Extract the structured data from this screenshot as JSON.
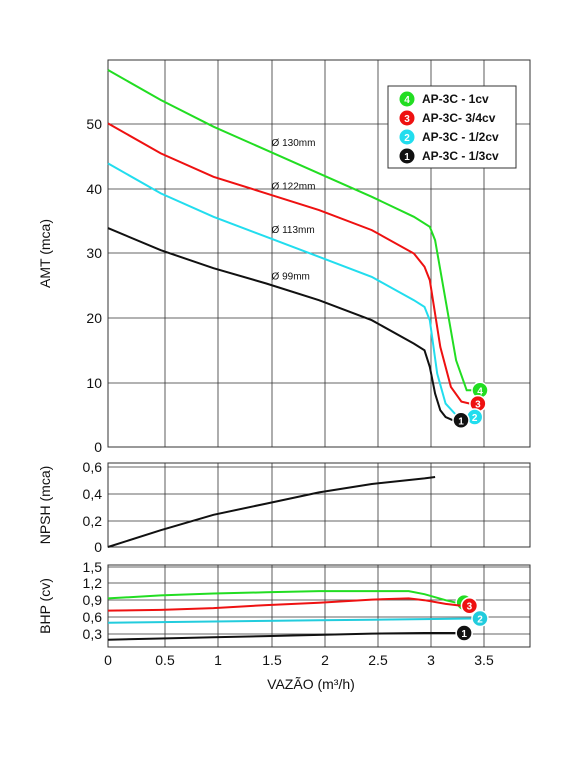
{
  "chart_data": [
    {
      "type": "line",
      "id": "amt",
      "ylabel": "AMT (mca)",
      "xlim": [
        0,
        4
      ],
      "ylim": [
        0,
        58
      ],
      "yticks": [
        "0",
        "10",
        "20",
        "30",
        "40",
        "50"
      ],
      "grid": true,
      "legend_position": "top-right",
      "series": [
        {
          "name": "AP-3C - 1cv",
          "badge": "4",
          "color": "#22dd22",
          "diameter_label": "Ø 130mm",
          "points": [
            [
              0,
              56.5
            ],
            [
              0.5,
              52
            ],
            [
              1,
              48
            ],
            [
              1.5,
              44.5
            ],
            [
              2,
              41
            ],
            [
              2.5,
              37.5
            ],
            [
              2.9,
              34.5
            ],
            [
              3.05,
              33
            ],
            [
              3.1,
              31
            ],
            [
              3.2,
              22
            ],
            [
              3.3,
              13
            ],
            [
              3.4,
              8.5
            ],
            [
              3.45,
              8.5
            ]
          ]
        },
        {
          "name": "AP-3C- 3/4cv",
          "badge": "3",
          "color": "#ee1111",
          "diameter_label": "Ø 122mm",
          "points": [
            [
              0,
              48.5
            ],
            [
              0.5,
              44
            ],
            [
              1,
              40.5
            ],
            [
              1.5,
              38
            ],
            [
              2,
              35.5
            ],
            [
              2.5,
              32.5
            ],
            [
              2.9,
              29
            ],
            [
              3.0,
              27
            ],
            [
              3.05,
              25
            ],
            [
              3.15,
              15
            ],
            [
              3.25,
              9
            ],
            [
              3.35,
              6.8
            ],
            [
              3.43,
              6.5
            ]
          ]
        },
        {
          "name": "AP-3C - 1/2cv",
          "badge": "2",
          "color": "#22ddee",
          "diameter_label": "Ø 113mm",
          "points": [
            [
              0,
              42.5
            ],
            [
              0.5,
              38
            ],
            [
              1,
              34.5
            ],
            [
              1.5,
              31.5
            ],
            [
              2,
              28.5
            ],
            [
              2.5,
              25.5
            ],
            [
              2.9,
              22
            ],
            [
              3.0,
              21
            ],
            [
              3.05,
              19
            ],
            [
              3.12,
              11
            ],
            [
              3.2,
              6.5
            ],
            [
              3.3,
              4.8
            ],
            [
              3.4,
              4.5
            ]
          ]
        },
        {
          "name": "AP-3C - 1/3cv",
          "badge": "1",
          "color": "#111111",
          "diameter_label": "Ø 99mm",
          "points": [
            [
              0,
              32.8
            ],
            [
              0.5,
              29.5
            ],
            [
              1,
              26.8
            ],
            [
              1.5,
              24.5
            ],
            [
              2,
              22
            ],
            [
              2.5,
              19
            ],
            [
              2.9,
              15.5
            ],
            [
              3.0,
              14.5
            ],
            [
              3.05,
              12
            ],
            [
              3.1,
              8
            ],
            [
              3.15,
              5.5
            ],
            [
              3.2,
              4.5
            ],
            [
              3.27,
              4
            ]
          ]
        }
      ]
    },
    {
      "type": "line",
      "id": "npsh",
      "ylabel": "NPSH (mca)",
      "xlim": [
        0,
        4
      ],
      "ylim": [
        0,
        0.6
      ],
      "yticks": [
        "0",
        "0,2",
        "0,4",
        "0,6"
      ],
      "grid": true,
      "series": [
        {
          "name": "NPSH",
          "color": "#111111",
          "points": [
            [
              0,
              0
            ],
            [
              0.5,
              0.12
            ],
            [
              1,
              0.23
            ],
            [
              1.5,
              0.31
            ],
            [
              2,
              0.39
            ],
            [
              2.5,
              0.45
            ],
            [
              3,
              0.49
            ],
            [
              3.1,
              0.5
            ]
          ]
        }
      ]
    },
    {
      "type": "line",
      "id": "bhp",
      "ylabel": "BHP (cv)",
      "xlabel": "VAZÃO (m³/h)",
      "xlim": [
        0,
        4
      ],
      "ylim": [
        0.15,
        1.5
      ],
      "yticks": [
        "0,3",
        "0,6",
        "0,9",
        "1,2",
        "1,5"
      ],
      "xticks": [
        "0",
        "0.5",
        "1",
        "1.5",
        "2",
        "2.5",
        "3",
        "3.5"
      ],
      "grid": true,
      "series": [
        {
          "name": "AP-3C - 1cv",
          "badge": "4",
          "color": "#22dd22",
          "points": [
            [
              0,
              0.95
            ],
            [
              0.5,
              1.0
            ],
            [
              1,
              1.03
            ],
            [
              1.5,
              1.05
            ],
            [
              2,
              1.07
            ],
            [
              2.5,
              1.07
            ],
            [
              2.85,
              1.07
            ],
            [
              3,
              1.02
            ],
            [
              3.2,
              0.92
            ],
            [
              3.3,
              0.88
            ]
          ]
        },
        {
          "name": "AP-3C- 3/4cv",
          "badge": "3",
          "color": "#ee1111",
          "points": [
            [
              0,
              0.75
            ],
            [
              0.5,
              0.76
            ],
            [
              1,
              0.79
            ],
            [
              1.5,
              0.84
            ],
            [
              2,
              0.88
            ],
            [
              2.5,
              0.93
            ],
            [
              2.85,
              0.95
            ],
            [
              3,
              0.92
            ],
            [
              3.2,
              0.86
            ],
            [
              3.35,
              0.83
            ]
          ]
        },
        {
          "name": "AP-3C - 1/2cv",
          "badge": "2",
          "color": "#22ccdd",
          "points": [
            [
              0,
              0.55
            ],
            [
              0.5,
              0.56
            ],
            [
              1,
              0.57
            ],
            [
              1.5,
              0.58
            ],
            [
              2,
              0.59
            ],
            [
              2.5,
              0.6
            ],
            [
              3,
              0.61
            ],
            [
              3.45,
              0.62
            ]
          ]
        },
        {
          "name": "AP-3C - 1/3cv",
          "badge": "1",
          "color": "#111111",
          "points": [
            [
              0,
              0.27
            ],
            [
              0.5,
              0.29
            ],
            [
              1,
              0.31
            ],
            [
              1.5,
              0.33
            ],
            [
              2,
              0.35
            ],
            [
              2.5,
              0.37
            ],
            [
              3,
              0.38
            ],
            [
              3.3,
              0.38
            ]
          ]
        }
      ]
    }
  ]
}
